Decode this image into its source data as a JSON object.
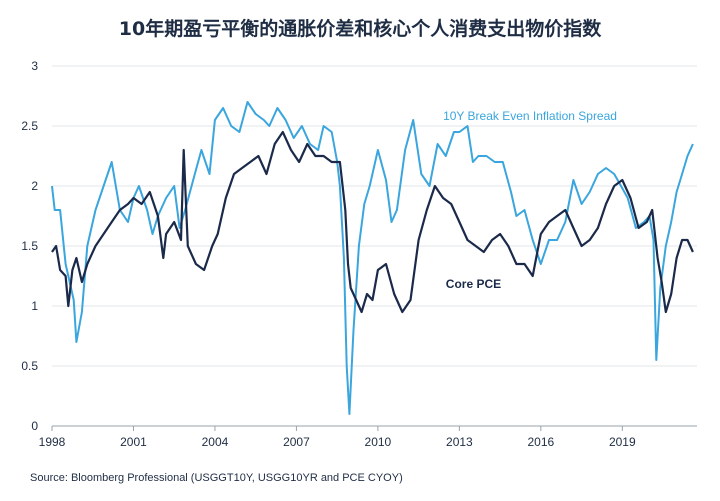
{
  "chart_data": {
    "type": "line",
    "title": "10年期盈亏平衡的通胀价差和核心个人消费支出物价指数",
    "source": "Source: Bloomberg Professional (USGGT10Y, USGG10YR and PCE CYOY)",
    "xlabel": "",
    "ylabel": "",
    "xlim": [
      1998.0,
      2021.75
    ],
    "ylim": [
      0,
      3
    ],
    "x_ticks": [
      "1998",
      "2001",
      "2004",
      "2007",
      "2010",
      "2013",
      "2016",
      "2019"
    ],
    "x_tick_values": [
      1998,
      2001,
      2004,
      2007,
      2010,
      2013,
      2016,
      2019
    ],
    "y_ticks": [
      "0",
      "0.5",
      "1",
      "1.5",
      "2",
      "2.5",
      "3"
    ],
    "y_tick_values": [
      0,
      0.5,
      1,
      1.5,
      2,
      2.5,
      3
    ],
    "grid": "horizontal",
    "series": [
      {
        "name": "10Y Break Even Inflation Spread",
        "color": "#3aa6dd",
        "x": [
          1998.0,
          1998.1,
          1998.3,
          1998.5,
          1998.6,
          1998.8,
          1998.9,
          1999.1,
          1999.3,
          1999.6,
          1999.9,
          2000.2,
          2000.5,
          2000.8,
          2001.0,
          2001.2,
          2001.5,
          2001.7,
          2001.9,
          2002.2,
          2002.5,
          2002.7,
          2002.9,
          2003.2,
          2003.5,
          2003.8,
          2004.0,
          2004.3,
          2004.6,
          2004.9,
          2005.2,
          2005.5,
          2005.8,
          2006.0,
          2006.3,
          2006.6,
          2006.9,
          2007.2,
          2007.5,
          2007.8,
          2008.0,
          2008.3,
          2008.5,
          2008.6,
          2008.75,
          2008.85,
          2008.95,
          2009.1,
          2009.3,
          2009.5,
          2009.7,
          2010.0,
          2010.3,
          2010.5,
          2010.7,
          2011.0,
          2011.3,
          2011.6,
          2011.9,
          2012.2,
          2012.5,
          2012.8,
          2013.0,
          2013.3,
          2013.5,
          2013.7,
          2014.0,
          2014.3,
          2014.6,
          2014.9,
          2015.1,
          2015.4,
          2015.7,
          2016.0,
          2016.3,
          2016.6,
          2016.9,
          2017.2,
          2017.5,
          2017.8,
          2018.1,
          2018.4,
          2018.7,
          2018.95,
          2019.2,
          2019.5,
          2019.8,
          2020.0,
          2020.15,
          2020.25,
          2020.4,
          2020.6,
          2020.8,
          2021.0,
          2021.2,
          2021.4,
          2021.6
        ],
        "values": [
          2.0,
          1.8,
          1.8,
          1.35,
          1.25,
          1.05,
          0.7,
          0.95,
          1.5,
          1.8,
          2.0,
          2.2,
          1.8,
          1.7,
          1.9,
          2.0,
          1.8,
          1.6,
          1.75,
          1.9,
          2.0,
          1.65,
          1.8,
          2.05,
          2.3,
          2.1,
          2.55,
          2.65,
          2.5,
          2.45,
          2.7,
          2.6,
          2.55,
          2.5,
          2.65,
          2.55,
          2.4,
          2.5,
          2.35,
          2.3,
          2.5,
          2.45,
          2.2,
          2.0,
          1.4,
          0.5,
          0.1,
          0.8,
          1.5,
          1.85,
          2.0,
          2.3,
          2.05,
          1.7,
          1.8,
          2.3,
          2.55,
          2.1,
          2.0,
          2.35,
          2.25,
          2.45,
          2.45,
          2.5,
          2.2,
          2.25,
          2.25,
          2.2,
          2.2,
          1.95,
          1.75,
          1.8,
          1.55,
          1.35,
          1.55,
          1.55,
          1.7,
          2.05,
          1.85,
          1.95,
          2.1,
          2.15,
          2.1,
          2.0,
          1.9,
          1.65,
          1.7,
          1.75,
          1.55,
          0.55,
          1.15,
          1.5,
          1.7,
          1.95,
          2.1,
          2.25,
          2.35
        ]
      },
      {
        "name": "Core PCE",
        "color": "#1b2a4a",
        "x": [
          1998.0,
          1998.15,
          1998.3,
          1998.5,
          1998.6,
          1998.75,
          1998.9,
          1999.1,
          1999.3,
          1999.6,
          1999.9,
          2000.2,
          2000.5,
          2000.8,
          2001.0,
          2001.3,
          2001.6,
          2001.9,
          2002.1,
          2002.2,
          2002.5,
          2002.75,
          2002.85,
          2003.0,
          2003.3,
          2003.6,
          2003.9,
          2004.1,
          2004.4,
          2004.7,
          2005.0,
          2005.3,
          2005.6,
          2005.9,
          2006.2,
          2006.5,
          2006.8,
          2007.1,
          2007.4,
          2007.7,
          2008.0,
          2008.3,
          2008.6,
          2008.8,
          2008.9,
          2009.0,
          2009.2,
          2009.4,
          2009.6,
          2009.8,
          2010.0,
          2010.3,
          2010.6,
          2010.9,
          2011.2,
          2011.5,
          2011.8,
          2012.1,
          2012.4,
          2012.7,
          2013.0,
          2013.3,
          2013.6,
          2013.9,
          2014.2,
          2014.5,
          2014.8,
          2015.1,
          2015.4,
          2015.7,
          2016.0,
          2016.3,
          2016.6,
          2016.9,
          2017.2,
          2017.5,
          2017.8,
          2018.1,
          2018.4,
          2018.7,
          2019.0,
          2019.3,
          2019.6,
          2019.9,
          2020.1,
          2020.3,
          2020.45,
          2020.6,
          2020.8,
          2021.0,
          2021.2,
          2021.4,
          2021.6
        ],
        "values": [
          1.45,
          1.5,
          1.3,
          1.25,
          1.0,
          1.3,
          1.4,
          1.2,
          1.35,
          1.5,
          1.6,
          1.7,
          1.8,
          1.85,
          1.9,
          1.85,
          1.95,
          1.75,
          1.4,
          1.6,
          1.7,
          1.55,
          2.3,
          1.5,
          1.35,
          1.3,
          1.5,
          1.6,
          1.9,
          2.1,
          2.15,
          2.2,
          2.25,
          2.1,
          2.35,
          2.45,
          2.3,
          2.2,
          2.35,
          2.25,
          2.25,
          2.2,
          2.2,
          1.8,
          1.35,
          1.15,
          1.05,
          0.95,
          1.1,
          1.05,
          1.3,
          1.35,
          1.1,
          0.95,
          1.05,
          1.55,
          1.8,
          2.0,
          1.9,
          1.85,
          1.7,
          1.55,
          1.5,
          1.45,
          1.55,
          1.6,
          1.5,
          1.35,
          1.35,
          1.25,
          1.6,
          1.7,
          1.75,
          1.8,
          1.65,
          1.5,
          1.55,
          1.65,
          1.85,
          2.0,
          2.05,
          1.9,
          1.65,
          1.7,
          1.8,
          1.4,
          1.2,
          0.95,
          1.1,
          1.4,
          1.55,
          1.55,
          1.45
        ]
      }
    ]
  }
}
